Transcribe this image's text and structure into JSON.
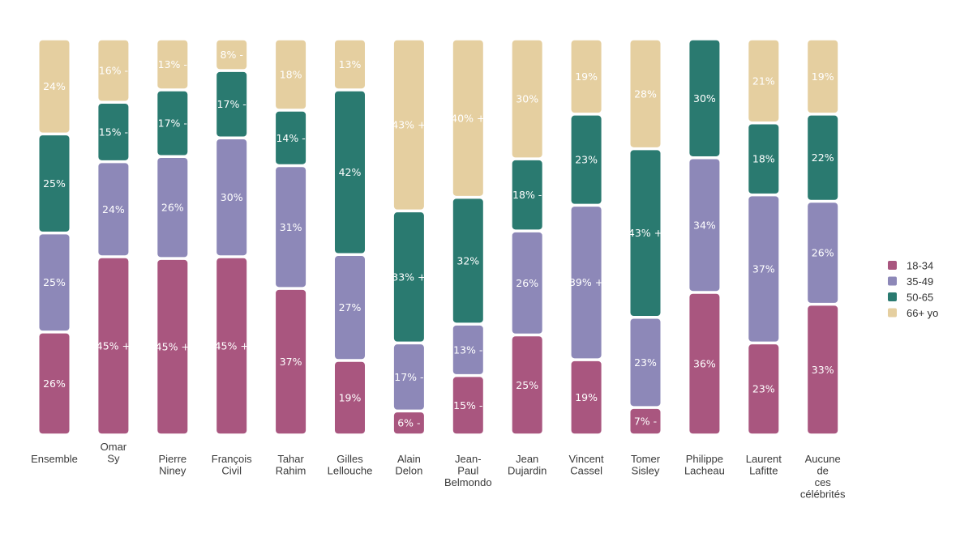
{
  "chart_data": {
    "type": "bar",
    "stacked": true,
    "normalized_to_percent": true,
    "categories": [
      [
        "Ensemble"
      ],
      [
        "Omar",
        "Sy"
      ],
      [
        "Pierre",
        "Niney"
      ],
      [
        "François",
        "Civil"
      ],
      [
        "Tahar",
        "Rahim"
      ],
      [
        "Gilles",
        "Lellouche"
      ],
      [
        "Alain",
        "Delon"
      ],
      [
        "Jean-",
        "Paul",
        "Belmondo"
      ],
      [
        "Jean",
        "Dujardin"
      ],
      [
        "Vincent",
        "Cassel"
      ],
      [
        "Tomer",
        "Sisley"
      ],
      [
        "Philippe",
        "Lacheau"
      ],
      [
        "Laurent",
        "Lafitte"
      ],
      [
        "Aucune",
        "de",
        "ces",
        "célébrités"
      ]
    ],
    "series": [
      {
        "name": "18-34",
        "color": "#a9567f",
        "values": [
          26,
          45,
          45,
          45,
          37,
          19,
          6,
          15,
          25,
          19,
          7,
          36,
          23,
          33
        ],
        "labels": [
          "26%",
          "45% +",
          "45% +",
          "45% +",
          "37%",
          "19%",
          "6% -",
          "15% -",
          "25%",
          "19%",
          "7% -",
          "36%",
          "23%",
          "33%"
        ]
      },
      {
        "name": "35-49",
        "color": "#8d88b8",
        "values": [
          25,
          24,
          26,
          30,
          31,
          27,
          17,
          13,
          26,
          39,
          23,
          34,
          37,
          26
        ],
        "labels": [
          "25%",
          "24%",
          "26%",
          "30%",
          "31%",
          "27%",
          "17% -",
          "13% -",
          "26%",
          "39% +",
          "23%",
          "34%",
          "37%",
          "26%"
        ]
      },
      {
        "name": "50-65",
        "color": "#2a7a70",
        "values": [
          25,
          15,
          17,
          17,
          14,
          42,
          33,
          32,
          18,
          23,
          43,
          30,
          18,
          22
        ],
        "labels": [
          "25%",
          "15% -",
          "17% -",
          "17% -",
          "14% -",
          "42%",
          "33% +",
          "32%",
          "18% -",
          "23%",
          "43% +",
          "30%",
          "18%",
          "22%"
        ]
      },
      {
        "name": "66+ yo",
        "color": "#e5cfa0",
        "values": [
          24,
          16,
          13,
          8,
          18,
          13,
          43,
          40,
          30,
          19,
          28,
          0,
          21,
          19
        ],
        "labels": [
          "24%",
          "16% -",
          "13% -",
          "8% -",
          "18%",
          "13%",
          "43% +",
          "40% +",
          "30%",
          "19%",
          "28%",
          "",
          "21%",
          "19%"
        ]
      }
    ],
    "legend_position": "right",
    "grid": false,
    "title": "",
    "xlabel": "",
    "ylabel": ""
  }
}
